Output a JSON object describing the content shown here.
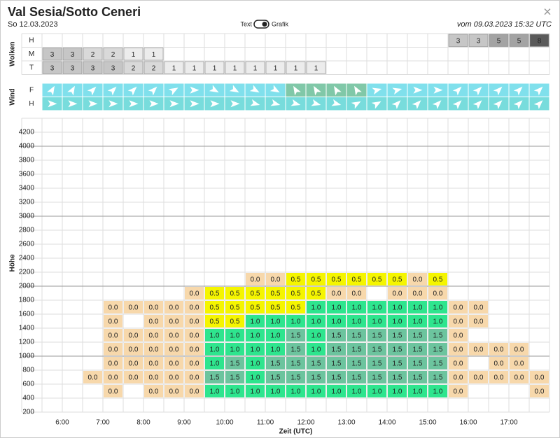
{
  "header": {
    "title": "Val Sesia/Sotto Ceneri",
    "date": "So 12.03.2023",
    "toggle_left": "Text",
    "toggle_right": "Grafik",
    "issued": "vom 09.03.2023 15:32 UTC",
    "close": "×"
  },
  "clouds": {
    "label": "Wolken",
    "colors": {
      "1": "#ececec",
      "2": "#d9d9d9",
      "3": "#c6c6c6",
      "5": "#a3a3a3",
      "8": "#5a5a5a"
    },
    "rows": [
      {
        "label": "H",
        "cells": [
          null,
          null,
          null,
          null,
          null,
          null,
          null,
          null,
          null,
          null,
          null,
          null,
          null,
          null,
          null,
          null,
          null,
          null,
          null,
          null,
          "3",
          "3",
          "5",
          "5",
          "8"
        ]
      },
      {
        "label": "M",
        "cells": [
          "3",
          "3",
          "2",
          "2",
          "1",
          "1",
          null,
          null,
          null,
          null,
          null,
          null,
          null,
          null,
          null,
          null,
          null,
          null,
          null,
          null,
          null,
          null,
          null,
          null,
          null
        ]
      },
      {
        "label": "T",
        "cells": [
          "3",
          "3",
          "3",
          "3",
          "2",
          "2",
          "1",
          "1",
          "1",
          "1",
          "1",
          "1",
          "1",
          "1",
          null,
          null,
          null,
          null,
          null,
          null,
          null,
          null,
          null,
          null,
          null
        ]
      }
    ]
  },
  "wind": {
    "label": "Wind",
    "rows": [
      {
        "label": "F",
        "directions": [
          -60,
          -60,
          -45,
          -45,
          -45,
          -45,
          -30,
          0,
          30,
          30,
          30,
          30,
          -120,
          -120,
          -120,
          -120,
          -15,
          -15,
          0,
          0,
          -45,
          -45,
          -45,
          -45,
          -45
        ],
        "colors": [
          "#80e0ec",
          "#80e0ec",
          "#80e0ec",
          "#80e0ec",
          "#80e0ec",
          "#80e0ec",
          "#80e0ec",
          "#80e0ec",
          "#80e0ec",
          "#80e0ec",
          "#80e0ec",
          "#80e0ec",
          "#80c8a8",
          "#80c8a8",
          "#80c8a8",
          "#80c8a8",
          "#80e0ec",
          "#80e0ec",
          "#80e0ec",
          "#80e0ec",
          "#80e0ec",
          "#80e0ec",
          "#80e0ec",
          "#80e0ec",
          "#80e0ec"
        ]
      },
      {
        "label": "H",
        "directions": [
          0,
          0,
          0,
          0,
          0,
          0,
          0,
          0,
          0,
          0,
          15,
          15,
          15,
          15,
          15,
          -30,
          -30,
          -45,
          -45,
          -45,
          -45,
          -45,
          -45,
          -45,
          -45
        ],
        "colors": [
          "#78dcdc",
          "#78dcdc",
          "#78dcdc",
          "#78dcdc",
          "#78dcdc",
          "#78dcdc",
          "#78dcdc",
          "#78dcdc",
          "#78dcdc",
          "#78dcdc",
          "#78dcdc",
          "#78dcdc",
          "#78dcdc",
          "#78dcdc",
          "#78dcdc",
          "#78dcdc",
          "#78dcdc",
          "#78dcdc",
          "#78dcdc",
          "#78dcdc",
          "#78dcdc",
          "#78dcdc",
          "#78dcdc",
          "#78dcdc",
          "#78dcdc"
        ]
      }
    ]
  },
  "profile": {
    "y_label": "Höhe",
    "x_label": "Zeit (UTC)",
    "ylim": [
      200,
      4400
    ],
    "yticks": [
      200,
      400,
      600,
      800,
      1000,
      1200,
      1400,
      1600,
      1800,
      2000,
      2200,
      2400,
      2600,
      2800,
      3000,
      3200,
      3400,
      3600,
      3800,
      4000,
      4200
    ],
    "times": [
      "6:00",
      "7:00",
      "8:00",
      "9:00",
      "10:00",
      "11:00",
      "12:00",
      "13:00",
      "14:00",
      "15:00",
      "16:00",
      "17:00"
    ],
    "cell_colors": {
      "0.0": "#f7d8ab",
      "0.5": "#f5f500",
      "1.0": "#2ee58e",
      "1.5": "#6cc49e"
    },
    "rows": [
      {
        "cells": [
          null,
          null,
          null,
          "0.0",
          null,
          "0.0",
          "0.0",
          "0.0",
          "1.0",
          "1.0",
          "1.0",
          "1.0",
          "1.0",
          "1.0",
          "1.0",
          "1.0",
          "1.0",
          "1.0",
          "1.0",
          "1.0",
          "0.0",
          null,
          null,
          null,
          "0.0"
        ]
      },
      {
        "cells": [
          null,
          null,
          "0.0",
          "0.0",
          "0.0",
          "0.0",
          "0.0",
          "0.0",
          "1.5",
          "1.5",
          "1.0",
          "1.5",
          "1.5",
          "1.5",
          "1.5",
          "1.5",
          "1.5",
          "1.5",
          "1.5",
          "1.5",
          "0.0",
          "0.0",
          "0.0",
          "0.0",
          "0.0"
        ]
      },
      {
        "cells": [
          null,
          null,
          null,
          "0.0",
          "0.0",
          "0.0",
          "0.0",
          "0.0",
          "1.0",
          "1.5",
          "1.0",
          "1.5",
          "1.5",
          "1.5",
          "1.5",
          "1.5",
          "1.5",
          "1.5",
          "1.5",
          "1.5",
          "0.0",
          null,
          "0.0",
          "0.0",
          null
        ]
      },
      {
        "cells": [
          null,
          null,
          null,
          "0.0",
          "0.0",
          "0.0",
          "0.0",
          "0.0",
          "1.0",
          "1.0",
          "1.0",
          "1.0",
          "1.5",
          "1.0",
          "1.5",
          "1.5",
          "1.5",
          "1.5",
          "1.5",
          "1.5",
          "0.0",
          "0.0",
          "0.0",
          "0.0",
          null
        ]
      },
      {
        "cells": [
          null,
          null,
          null,
          "0.0",
          "0.0",
          "0.0",
          "0.0",
          "0.0",
          "1.0",
          "1.0",
          "1.0",
          "1.0",
          "1.5",
          "1.0",
          "1.5",
          "1.5",
          "1.5",
          "1.5",
          "1.5",
          "1.5",
          "0.0",
          null,
          null,
          null,
          null
        ]
      },
      {
        "cells": [
          null,
          null,
          null,
          "0.0",
          null,
          "0.0",
          "0.0",
          "0.0",
          "0.5",
          "0.5",
          "1.0",
          "1.0",
          "1.0",
          "1.0",
          "1.0",
          "1.0",
          "1.0",
          "1.0",
          "1.0",
          "1.0",
          "0.0",
          "0.0",
          null,
          null,
          null
        ]
      },
      {
        "cells": [
          null,
          null,
          null,
          "0.0",
          "0.0",
          "0.0",
          "0.0",
          "0.0",
          "0.5",
          "0.5",
          "0.5",
          "0.5",
          "0.5",
          "1.0",
          "1.0",
          "1.0",
          "1.0",
          "1.0",
          "1.0",
          "1.0",
          "0.0",
          "0.0",
          null,
          null,
          null
        ]
      },
      {
        "cells": [
          null,
          null,
          null,
          null,
          null,
          null,
          null,
          "0.0",
          "0.5",
          "0.5",
          "0.5",
          "0.5",
          "0.5",
          "0.5",
          "0.0",
          "0.0",
          null,
          "0.0",
          "0.0",
          "0.0",
          null,
          null,
          null,
          null,
          null
        ]
      },
      {
        "cells": [
          null,
          null,
          null,
          null,
          null,
          null,
          null,
          null,
          null,
          null,
          "0.0",
          "0.0",
          "0.5",
          "0.5",
          "0.5",
          "0.5",
          "0.5",
          "0.5",
          "0.0",
          "0.5",
          null,
          null,
          null,
          null,
          null
        ]
      }
    ]
  }
}
